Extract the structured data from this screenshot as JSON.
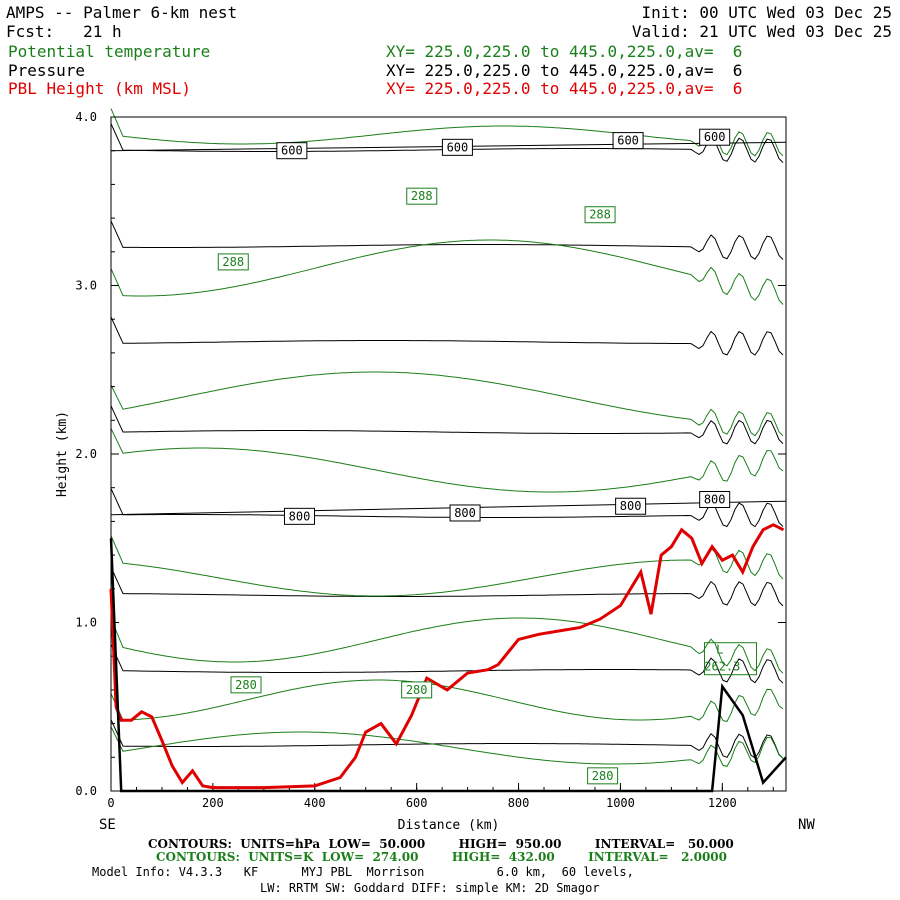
{
  "header": {
    "title": "AMPS -- Palmer 6-km nest",
    "fcst": "Fcst:   21 h",
    "init": "Init: 00 UTC Wed 03 Dec 25",
    "valid": "Valid: 21 UTC Wed 03 Dec 25",
    "legend": [
      {
        "name": "Potential temperature",
        "xy": "XY= 225.0,225.0 to 445.0,225.0,av=  6",
        "color": "#1a7f1a"
      },
      {
        "name": "Pressure",
        "xy": "XY= 225.0,225.0 to 445.0,225.0,av=  6",
        "color": "#000000"
      },
      {
        "name": "PBL Height (km MSL)",
        "xy": "XY= 225.0,225.0 to 445.0,225.0,av=  6",
        "color": "#e00000"
      }
    ]
  },
  "footer": {
    "contours_pressure": "CONTOURS:  UNITS=hPa  LOW=  50.000        HIGH=  950.00        INTERVAL=   50.000",
    "contours_theta": "CONTOURS:  UNITS=K  LOW=  274.00        HIGH=  432.00        INTERVAL=   2.0000",
    "model_info": "Model Info: V4.3.3   KF      MYJ PBL  Morrison          6.0 km,  60 levels,",
    "model_info2": "LW: RRTM SW: Goddard DIFF: simple KM: 2D Smagor"
  },
  "chart_data": {
    "type": "line",
    "title": "AMPS -- Palmer 6-km nest",
    "xlabel": "Distance (km)",
    "ylabel": "Height (km)",
    "xlim": [
      0,
      1325
    ],
    "ylim": [
      0,
      4.0
    ],
    "xticks": [
      0,
      200,
      400,
      600,
      800,
      1000,
      1200
    ],
    "yticks": [
      0.0,
      1.0,
      2.0,
      3.0,
      4.0
    ],
    "xtick_labels": [
      "0",
      "200",
      "400",
      "600",
      "800",
      "1000",
      "1200"
    ],
    "ytick_labels": [
      "0.0",
      "1.0",
      "2.0",
      "3.0",
      "4.0"
    ],
    "left_end_label": "SE",
    "right_end_label": "NW",
    "series": [
      {
        "name": "PBL Height (km MSL)",
        "color": "#e00000",
        "x": [
          0,
          10,
          20,
          40,
          60,
          80,
          100,
          120,
          140,
          160,
          180,
          200,
          300,
          400,
          450,
          480,
          500,
          530,
          560,
          590,
          620,
          660,
          700,
          740,
          760,
          800,
          840,
          880,
          920,
          960,
          1000,
          1040,
          1060,
          1080,
          1100,
          1120,
          1140,
          1160,
          1180,
          1200,
          1220,
          1240,
          1260,
          1280,
          1300,
          1320
        ],
        "y": [
          1.2,
          0.5,
          0.42,
          0.42,
          0.47,
          0.44,
          0.3,
          0.15,
          0.05,
          0.12,
          0.03,
          0.02,
          0.02,
          0.03,
          0.08,
          0.2,
          0.35,
          0.4,
          0.28,
          0.45,
          0.67,
          0.6,
          0.7,
          0.72,
          0.75,
          0.9,
          0.93,
          0.95,
          0.97,
          1.02,
          1.1,
          1.3,
          1.05,
          1.4,
          1.45,
          1.55,
          1.5,
          1.35,
          1.45,
          1.37,
          1.4,
          1.3,
          1.45,
          1.55,
          1.58,
          1.55
        ]
      },
      {
        "name": "Pressure 600 hPa",
        "color": "#000000",
        "x": [
          0,
          1325
        ],
        "y": [
          3.8,
          3.85
        ]
      },
      {
        "name": "Pressure 800 hPa",
        "color": "#000000",
        "x": [
          0,
          1325
        ],
        "y": [
          1.64,
          1.72
        ]
      },
      {
        "name": "Terrain",
        "color": "#000000",
        "x": [
          0,
          20,
          1180,
          1200,
          1240,
          1280,
          1325
        ],
        "y": [
          1.5,
          0,
          0,
          0.62,
          0.45,
          0.05,
          0.2
        ]
      }
    ],
    "contour_labels": [
      {
        "text": "600",
        "x": 355,
        "y": 3.8,
        "color": "#000000"
      },
      {
        "text": "600",
        "x": 680,
        "y": 3.82,
        "color": "#000000"
      },
      {
        "text": "600",
        "x": 1015,
        "y": 3.86,
        "color": "#000000"
      },
      {
        "text": "600",
        "x": 1185,
        "y": 3.88,
        "color": "#000000"
      },
      {
        "text": "288",
        "x": 610,
        "y": 3.53,
        "color": "#1a7f1a"
      },
      {
        "text": "288",
        "x": 960,
        "y": 3.42,
        "color": "#1a7f1a"
      },
      {
        "text": "288",
        "x": 240,
        "y": 3.14,
        "color": "#1a7f1a"
      },
      {
        "text": "800",
        "x": 370,
        "y": 1.63,
        "color": "#000000"
      },
      {
        "text": "800",
        "x": 695,
        "y": 1.65,
        "color": "#000000"
      },
      {
        "text": "800",
        "x": 1020,
        "y": 1.69,
        "color": "#000000"
      },
      {
        "text": "800",
        "x": 1185,
        "y": 1.73,
        "color": "#000000"
      },
      {
        "text": "280",
        "x": 265,
        "y": 0.63,
        "color": "#1a7f1a"
      },
      {
        "text": "280",
        "x": 600,
        "y": 0.6,
        "color": "#1a7f1a"
      },
      {
        "text": "280",
        "x": 965,
        "y": 0.09,
        "color": "#1a7f1a"
      },
      {
        "text": "L",
        "x": 1195,
        "y": 0.84,
        "color": "#1a7f1a"
      },
      {
        "text": "262.3",
        "x": 1200,
        "y": 0.74,
        "color": "#1a7f1a"
      }
    ]
  }
}
